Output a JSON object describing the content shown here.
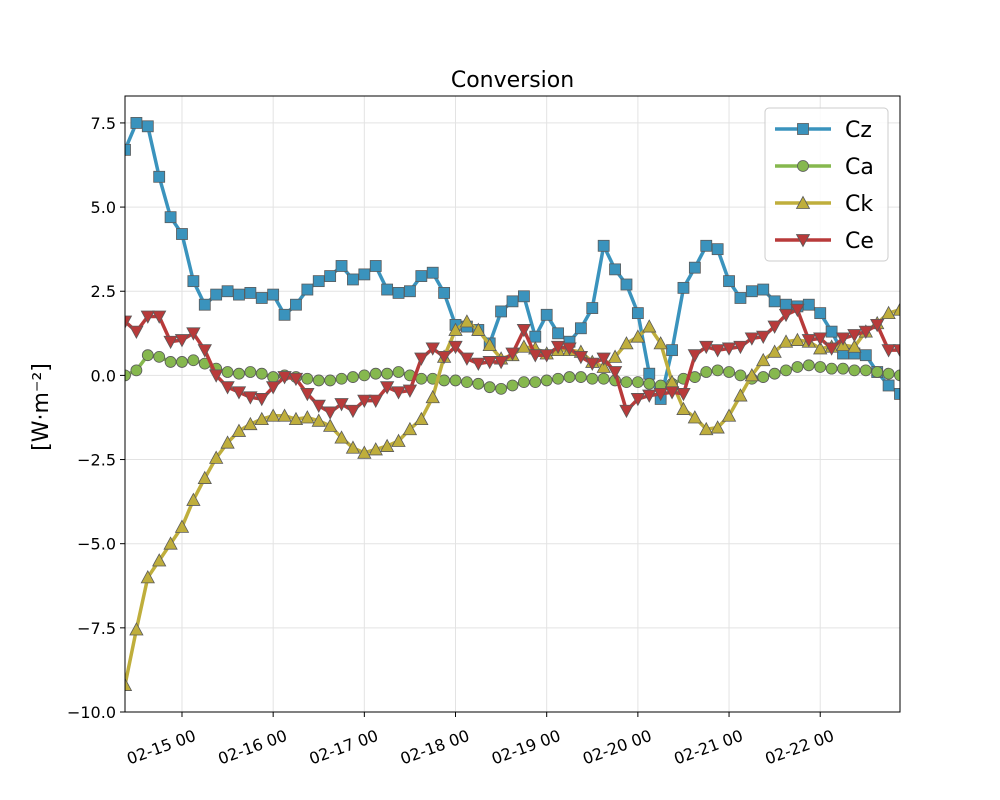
{
  "chart_data": {
    "type": "line",
    "title": "Conversion",
    "xlabel": "",
    "ylabel": "[W·m⁻²]",
    "x_start": "2025-02-14 09:00",
    "x_step_hours": 3,
    "xlim": [
      "2025-02-14 09:00",
      "2025-02-22 21:00"
    ],
    "ylim": [
      -10.0,
      8.3
    ],
    "x_ticks": [
      {
        "x": "2025-02-15 00:00",
        "label": "02-15 00"
      },
      {
        "x": "2025-02-16 00:00",
        "label": "02-16 00"
      },
      {
        "x": "2025-02-17 00:00",
        "label": "02-17 00"
      },
      {
        "x": "2025-02-18 00:00",
        "label": "02-18 00"
      },
      {
        "x": "2025-02-19 00:00",
        "label": "02-19 00"
      },
      {
        "x": "2025-02-20 00:00",
        "label": "02-20 00"
      },
      {
        "x": "2025-02-21 00:00",
        "label": "02-21 00"
      },
      {
        "x": "2025-02-22 00:00",
        "label": "02-22 00"
      }
    ],
    "y_ticks": [
      {
        "y": 7.5,
        "label": "7.5"
      },
      {
        "y": 5.0,
        "label": "5.0"
      },
      {
        "y": 2.5,
        "label": "2.5"
      },
      {
        "y": 0.0,
        "label": "0.0"
      },
      {
        "y": -2.5,
        "label": "−2.5"
      },
      {
        "y": -5.0,
        "label": "−5.0"
      },
      {
        "y": -7.5,
        "label": "−7.5"
      },
      {
        "y": -10.0,
        "label": "−10.0"
      }
    ],
    "grid": true,
    "legend_position": "top-right",
    "series": [
      {
        "name": "Cz",
        "color": "#3a93bd",
        "marker": "square",
        "values": [
          6.7,
          7.5,
          7.4,
          5.9,
          4.7,
          4.2,
          2.8,
          2.1,
          2.4,
          2.5,
          2.4,
          2.45,
          2.3,
          2.4,
          1.8,
          2.1,
          2.55,
          2.8,
          2.95,
          3.25,
          2.85,
          3.0,
          3.25,
          2.55,
          2.45,
          2.5,
          2.95,
          3.05,
          2.45,
          1.5,
          1.45,
          1.35,
          0.95,
          1.9,
          2.2,
          2.35,
          1.15,
          1.8,
          1.25,
          1.0,
          1.4,
          2.0,
          3.85,
          3.15,
          2.7,
          1.85,
          0.05,
          -0.7,
          0.75,
          2.6,
          3.2,
          3.85,
          3.75,
          2.8,
          2.3,
          2.5,
          2.55,
          2.2,
          2.1,
          2.05,
          2.1,
          1.85,
          1.3,
          0.65,
          0.65,
          0.6,
          0.1,
          -0.3,
          -0.55
        ]
      },
      {
        "name": "Ca",
        "color": "#86b84e",
        "marker": "circle",
        "values": [
          0.0,
          0.15,
          0.6,
          0.55,
          0.4,
          0.4,
          0.45,
          0.35,
          0.2,
          0.1,
          0.05,
          0.1,
          0.05,
          -0.05,
          0.0,
          -0.05,
          -0.1,
          -0.15,
          -0.15,
          -0.1,
          -0.05,
          0.0,
          0.05,
          0.05,
          0.1,
          0.0,
          -0.1,
          -0.1,
          -0.15,
          -0.15,
          -0.2,
          -0.25,
          -0.35,
          -0.4,
          -0.3,
          -0.2,
          -0.2,
          -0.15,
          -0.1,
          -0.05,
          -0.05,
          -0.1,
          -0.1,
          -0.15,
          -0.2,
          -0.2,
          -0.25,
          -0.3,
          -0.25,
          -0.1,
          -0.05,
          0.1,
          0.15,
          0.1,
          0.0,
          -0.1,
          -0.05,
          0.05,
          0.15,
          0.25,
          0.3,
          0.25,
          0.2,
          0.2,
          0.15,
          0.15,
          0.1,
          0.05,
          0.0
        ]
      },
      {
        "name": "Ck",
        "color": "#bfae3c",
        "marker": "triangle-up",
        "values": [
          -9.2,
          -7.55,
          -6.0,
          -5.5,
          -5.0,
          -4.5,
          -3.7,
          -3.05,
          -2.45,
          -2.0,
          -1.65,
          -1.45,
          -1.3,
          -1.2,
          -1.2,
          -1.3,
          -1.25,
          -1.35,
          -1.5,
          -1.85,
          -2.15,
          -2.3,
          -2.2,
          -2.1,
          -1.95,
          -1.6,
          -1.3,
          -0.65,
          0.55,
          1.35,
          1.6,
          1.35,
          0.9,
          0.5,
          0.6,
          0.85,
          0.8,
          0.65,
          0.75,
          0.75,
          0.7,
          0.4,
          0.25,
          0.55,
          0.95,
          1.15,
          1.45,
          0.95,
          -0.2,
          -1.0,
          -1.25,
          -1.6,
          -1.55,
          -1.2,
          -0.6,
          0.0,
          0.45,
          0.7,
          1.0,
          1.05,
          1.0,
          0.8,
          0.85,
          0.9,
          0.85,
          1.3,
          1.55,
          1.85,
          1.95
        ]
      },
      {
        "name": "Ce",
        "color": "#b83a3a",
        "marker": "triangle-down",
        "values": [
          1.6,
          1.3,
          1.75,
          1.75,
          1.0,
          1.05,
          1.25,
          0.75,
          0.0,
          -0.35,
          -0.5,
          -0.65,
          -0.7,
          -0.35,
          -0.05,
          -0.1,
          -0.55,
          -0.9,
          -1.1,
          -0.85,
          -1.05,
          -0.75,
          -0.75,
          -0.35,
          -0.5,
          -0.45,
          0.5,
          0.8,
          0.55,
          0.85,
          0.5,
          0.35,
          0.4,
          0.4,
          0.65,
          1.35,
          0.6,
          0.6,
          0.85,
          0.8,
          0.55,
          0.35,
          0.5,
          0.1,
          -1.05,
          -0.7,
          -0.6,
          -0.55,
          -0.5,
          -0.55,
          0.6,
          0.85,
          0.75,
          0.8,
          0.85,
          1.1,
          1.15,
          1.45,
          1.8,
          1.95,
          1.05,
          1.1,
          0.8,
          1.1,
          1.2,
          1.3,
          1.5,
          0.75,
          0.75
        ]
      }
    ]
  }
}
